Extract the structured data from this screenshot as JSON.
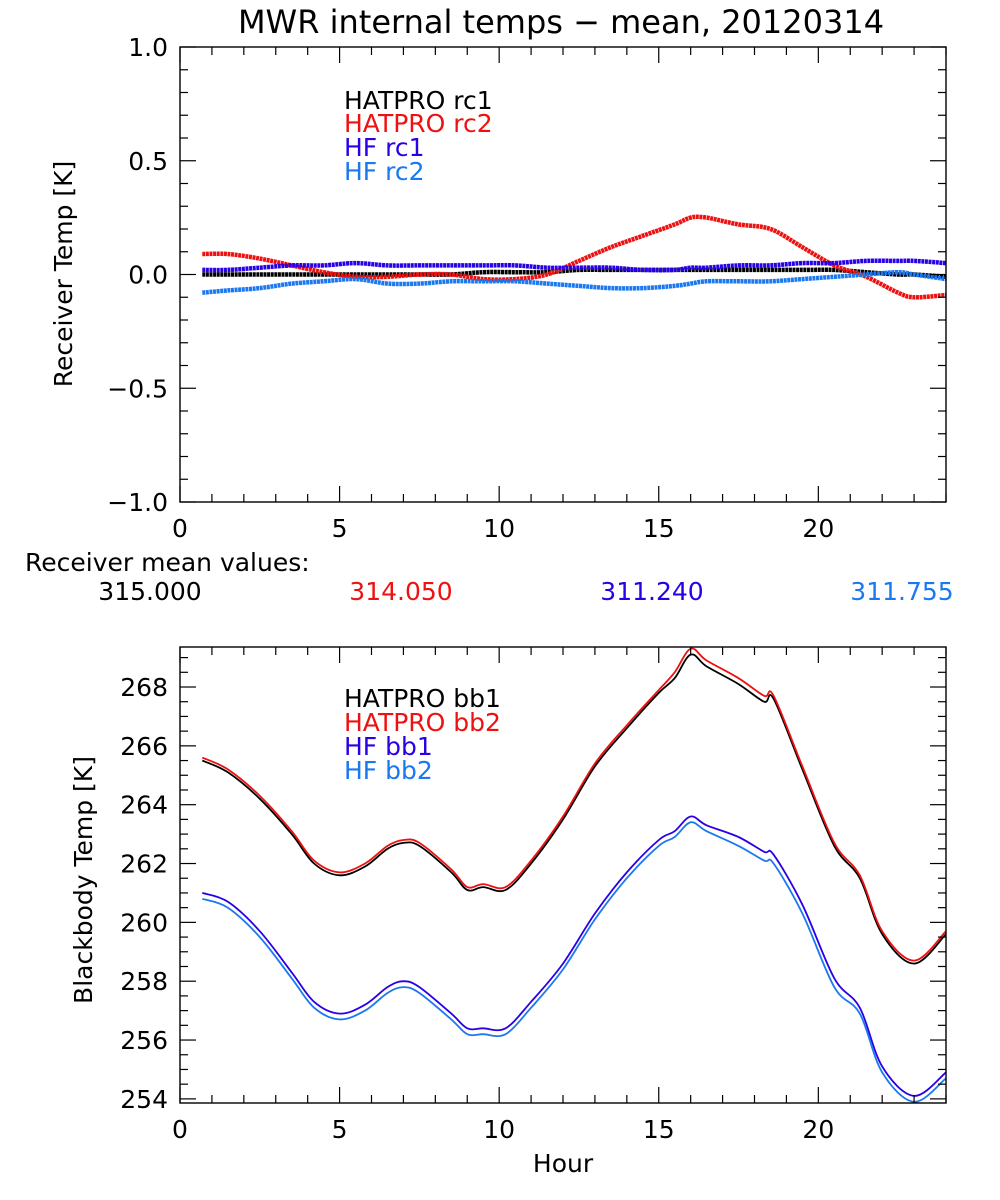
{
  "title": "MWR internal temps − mean, 20120314",
  "mean_values": {
    "label": "Receiver mean values:",
    "values": [
      "315.000",
      "314.050",
      "311.240",
      "311.755"
    ]
  },
  "colors": {
    "hatpro1": "#000000",
    "hatpro2": "#ee1111",
    "hf1": "#2a00e6",
    "hf2": "#1a78f0",
    "axis": "#000000"
  },
  "chart_data": [
    {
      "type": "line",
      "title": "MWR internal temps − mean, 20120314",
      "xlabel": "",
      "ylabel": "Receiver Temp [K]",
      "xlim": [
        0,
        24
      ],
      "ylim": [
        -1.0,
        1.0
      ],
      "xticks": [
        "0",
        "5",
        "10",
        "15",
        "20"
      ],
      "xtick_values": [
        0,
        5,
        10,
        15,
        20
      ],
      "yticks": [
        "−1.0",
        "−0.5",
        "0.0",
        "0.5",
        "1.0"
      ],
      "ytick_values": [
        -1.0,
        -0.5,
        0.0,
        0.5,
        1.0
      ],
      "grid": false,
      "legend_position": "top-center",
      "x": [
        0.7,
        1.5,
        2.5,
        3.5,
        4.5,
        5.5,
        6.5,
        7.5,
        8.5,
        9.5,
        10.5,
        11.5,
        12.5,
        13.5,
        14.5,
        15.5,
        16.0,
        16.5,
        17.5,
        18.5,
        19.5,
        20.5,
        21.5,
        22.5,
        23.0,
        24.0
      ],
      "series": [
        {
          "name": "HATPRO rc1",
          "color_key": "hatpro1",
          "values": [
            0.0,
            0.0,
            0.0,
            0.0,
            0.0,
            0.0,
            0.0,
            0.0,
            0.0,
            0.01,
            0.01,
            0.01,
            0.02,
            0.02,
            0.02,
            0.02,
            0.02,
            0.02,
            0.02,
            0.02,
            0.02,
            0.02,
            0.01,
            0.0,
            0.0,
            -0.01
          ]
        },
        {
          "name": "HATPRO rc2",
          "color_key": "hatpro2",
          "values": [
            0.09,
            0.09,
            0.07,
            0.04,
            0.01,
            -0.01,
            -0.01,
            0.0,
            0.0,
            -0.02,
            -0.02,
            0.0,
            0.06,
            0.12,
            0.17,
            0.22,
            0.25,
            0.25,
            0.22,
            0.2,
            0.12,
            0.04,
            -0.01,
            -0.08,
            -0.1,
            -0.09
          ]
        },
        {
          "name": "HF rc1",
          "color_key": "hf1",
          "values": [
            0.02,
            0.02,
            0.03,
            0.04,
            0.04,
            0.05,
            0.04,
            0.04,
            0.04,
            0.04,
            0.04,
            0.03,
            0.03,
            0.03,
            0.02,
            0.02,
            0.03,
            0.03,
            0.04,
            0.04,
            0.05,
            0.05,
            0.06,
            0.06,
            0.06,
            0.05
          ]
        },
        {
          "name": "HF rc2",
          "color_key": "hf2",
          "values": [
            -0.08,
            -0.07,
            -0.06,
            -0.04,
            -0.03,
            -0.02,
            -0.04,
            -0.04,
            -0.03,
            -0.03,
            -0.03,
            -0.04,
            -0.05,
            -0.06,
            -0.06,
            -0.05,
            -0.04,
            -0.03,
            -0.03,
            -0.03,
            -0.02,
            -0.01,
            0.0,
            0.01,
            0.0,
            -0.02
          ]
        }
      ]
    },
    {
      "type": "line",
      "title": "",
      "xlabel": "Hour",
      "ylabel": "Blackbody Temp [K]",
      "xlim": [
        0,
        24
      ],
      "ylim": [
        253.86,
        269.36
      ],
      "xticks": [
        "0",
        "5",
        "10",
        "15",
        "20"
      ],
      "xtick_values": [
        0,
        5,
        10,
        15,
        20
      ],
      "yticks": [
        "254",
        "256",
        "258",
        "260",
        "262",
        "264",
        "266",
        "268"
      ],
      "ytick_values": [
        254,
        256,
        258,
        260,
        262,
        264,
        266,
        268
      ],
      "grid": false,
      "legend_position": "top-center",
      "x": [
        0.7,
        1.5,
        2.5,
        3.5,
        4.2,
        5.0,
        5.8,
        6.5,
        7.0,
        7.5,
        8.5,
        9.0,
        9.5,
        10.2,
        11.0,
        12.0,
        13.0,
        14.0,
        15.0,
        15.5,
        16.0,
        16.5,
        17.5,
        18.3,
        18.6,
        19.5,
        20.5,
        21.3,
        22.0,
        23.0,
        24.0
      ],
      "series": [
        {
          "name": "HATPRO bb1",
          "color_key": "hatpro1",
          "values": [
            265.5,
            265.1,
            264.2,
            263.0,
            262.0,
            261.6,
            261.9,
            262.5,
            262.7,
            262.6,
            261.7,
            261.1,
            261.2,
            261.1,
            262.0,
            263.5,
            265.3,
            266.6,
            267.8,
            268.3,
            269.1,
            268.7,
            268.1,
            267.5,
            267.6,
            265.2,
            262.6,
            261.5,
            259.6,
            258.6,
            259.6
          ]
        },
        {
          "name": "HATPRO bb2",
          "color_key": "hatpro2",
          "values": [
            265.6,
            265.2,
            264.3,
            263.1,
            262.1,
            261.7,
            262.0,
            262.6,
            262.8,
            262.7,
            261.8,
            261.2,
            261.3,
            261.2,
            262.1,
            263.6,
            265.4,
            266.7,
            267.9,
            268.5,
            269.3,
            268.9,
            268.3,
            267.7,
            267.7,
            265.3,
            262.7,
            261.6,
            259.7,
            258.7,
            259.7
          ]
        },
        {
          "name": "HF bb1",
          "color_key": "hf1",
          "values": [
            261.0,
            260.7,
            259.7,
            258.3,
            257.3,
            256.9,
            257.2,
            257.8,
            258.0,
            257.8,
            256.9,
            256.4,
            256.4,
            256.4,
            257.3,
            258.6,
            260.3,
            261.7,
            262.8,
            263.1,
            263.6,
            263.3,
            262.9,
            262.4,
            262.3,
            260.6,
            258.1,
            257.1,
            255.1,
            254.1,
            254.9
          ]
        },
        {
          "name": "HF bb2",
          "color_key": "hf2",
          "values": [
            260.8,
            260.5,
            259.5,
            258.1,
            257.1,
            256.7,
            257.0,
            257.6,
            257.8,
            257.6,
            256.7,
            256.2,
            256.2,
            256.2,
            257.1,
            258.4,
            260.1,
            261.5,
            262.6,
            262.9,
            263.4,
            263.1,
            262.6,
            262.1,
            262.0,
            260.3,
            257.8,
            256.9,
            254.9,
            253.9,
            254.7
          ]
        }
      ]
    }
  ]
}
